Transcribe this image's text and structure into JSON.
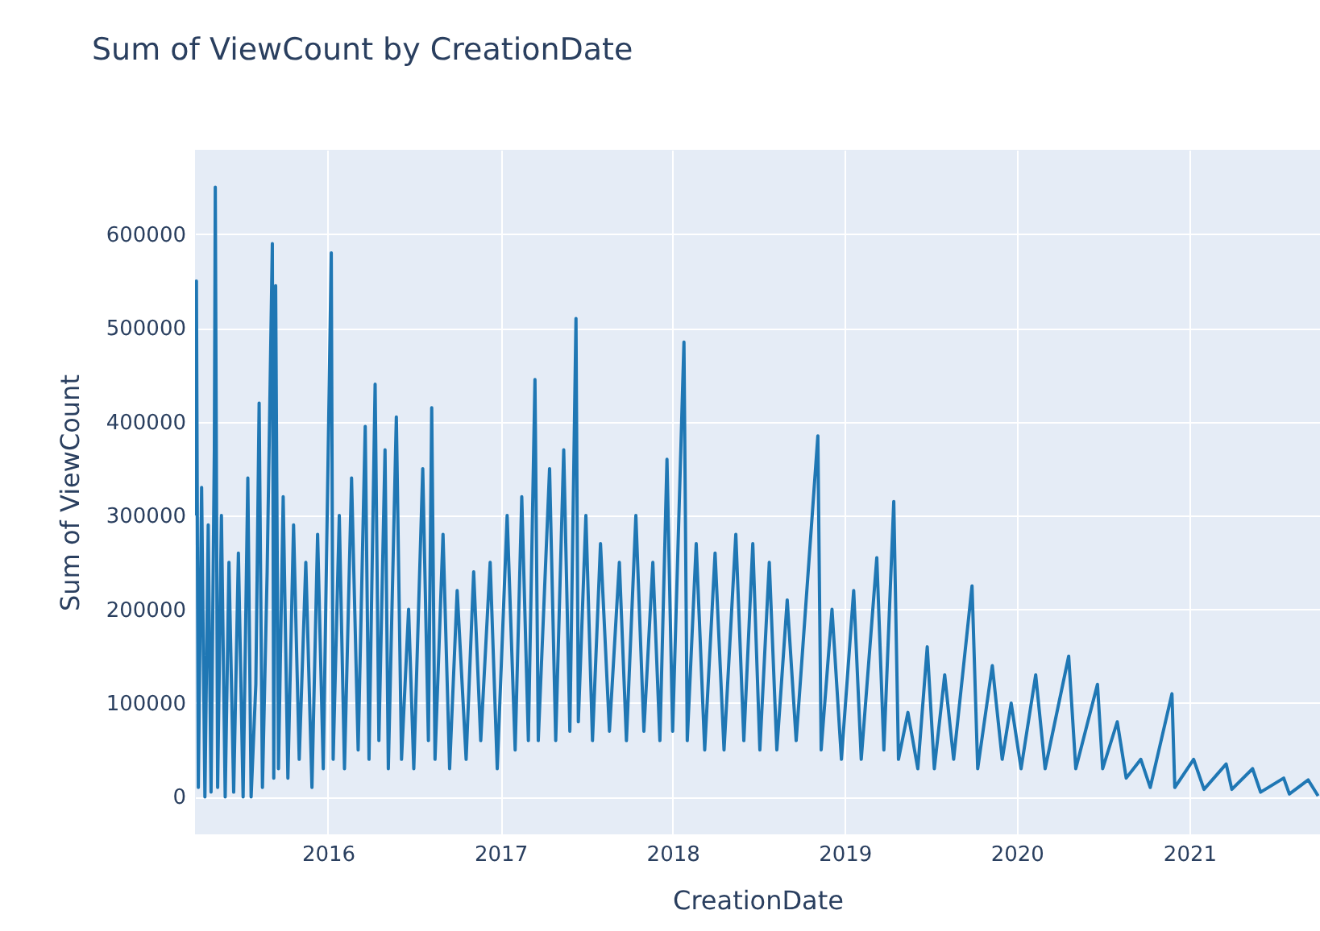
{
  "chart_data": {
    "type": "line",
    "title": "Sum of ViewCount by CreationDate",
    "xlabel": "CreationDate",
    "ylabel": "Sum of ViewCount",
    "xlim": [
      "2015-03-25",
      "2021-10-05"
    ],
    "xticks": [
      "2016",
      "2017",
      "2018",
      "2019",
      "2020",
      "2021"
    ],
    "ylim": [
      -40000,
      690000
    ],
    "yticks": [
      0,
      100000,
      200000,
      300000,
      400000,
      500000,
      600000
    ],
    "grid": true,
    "marker": "none",
    "line_style": "solid",
    "x": [
      "2015-03-25",
      "2015-03-28",
      "2015-04-01",
      "2015-04-08",
      "2015-04-15",
      "2015-04-22",
      "2015-04-28",
      "2015-05-05",
      "2015-05-07",
      "2015-05-12",
      "2015-05-20",
      "2015-05-28",
      "2015-06-05",
      "2015-06-15",
      "2015-06-25",
      "2015-07-05",
      "2015-07-15",
      "2015-07-22",
      "2015-08-01",
      "2015-08-08",
      "2015-08-15",
      "2015-08-25",
      "2015-09-05",
      "2015-09-08",
      "2015-09-12",
      "2015-09-18",
      "2015-09-28",
      "2015-10-08",
      "2015-10-20",
      "2015-11-01",
      "2015-11-15",
      "2015-11-28",
      "2015-12-10",
      "2015-12-22",
      "2016-01-08",
      "2016-01-12",
      "2016-01-25",
      "2016-02-05",
      "2016-02-20",
      "2016-03-05",
      "2016-03-20",
      "2016-03-28",
      "2016-04-10",
      "2016-04-18",
      "2016-05-01",
      "2016-05-08",
      "2016-05-25",
      "2016-06-05",
      "2016-06-20",
      "2016-07-01",
      "2016-07-20",
      "2016-08-01",
      "2016-08-08",
      "2016-08-15",
      "2016-09-01",
      "2016-09-15",
      "2016-10-01",
      "2016-10-20",
      "2016-11-05",
      "2016-11-20",
      "2016-12-10",
      "2016-12-25",
      "2017-01-15",
      "2017-02-01",
      "2017-02-15",
      "2017-03-01",
      "2017-03-15",
      "2017-03-22",
      "2017-04-15",
      "2017-04-28",
      "2017-05-15",
      "2017-05-28",
      "2017-06-10",
      "2017-06-15",
      "2017-07-01",
      "2017-07-15",
      "2017-08-01",
      "2017-08-20",
      "2017-09-10",
      "2017-09-25",
      "2017-10-15",
      "2017-11-01",
      "2017-11-20",
      "2017-12-05",
      "2017-12-20",
      "2018-01-01",
      "2018-01-25",
      "2018-02-01",
      "2018-02-20",
      "2018-03-10",
      "2018-04-01",
      "2018-04-20",
      "2018-05-15",
      "2018-06-01",
      "2018-06-20",
      "2018-07-05",
      "2018-07-25",
      "2018-08-10",
      "2018-09-01",
      "2018-09-20",
      "2018-11-05",
      "2018-11-12",
      "2018-12-05",
      "2018-12-25",
      "2019-01-20",
      "2019-02-05",
      "2019-03-10",
      "2019-03-25",
      "2019-04-15",
      "2019-04-25",
      "2019-05-15",
      "2019-06-05",
      "2019-06-25",
      "2019-07-10",
      "2019-08-01",
      "2019-08-20",
      "2019-09-28",
      "2019-10-10",
      "2019-11-10",
      "2019-12-01",
      "2019-12-20",
      "2020-01-10",
      "2020-02-10",
      "2020-03-01",
      "2020-04-20",
      "2020-05-05",
      "2020-06-20",
      "2020-07-01",
      "2020-08-01",
      "2020-08-20",
      "2020-09-20",
      "2020-10-10",
      "2020-11-25",
      "2020-12-01",
      "2021-01-10",
      "2021-02-01",
      "2021-03-20",
      "2021-04-01",
      "2021-05-15",
      "2021-06-01",
      "2021-07-20",
      "2021-08-01",
      "2021-09-10",
      "2021-10-01"
    ],
    "series": [
      {
        "color": "#1f77b4",
        "values": [
          300000,
          550000,
          10000,
          330000,
          0,
          290000,
          5000,
          370000,
          650000,
          10000,
          300000,
          0,
          250000,
          5000,
          260000,
          0,
          340000,
          0,
          120000,
          420000,
          10000,
          240000,
          590000,
          20000,
          545000,
          30000,
          320000,
          20000,
          290000,
          40000,
          250000,
          10000,
          280000,
          30000,
          580000,
          40000,
          300000,
          30000,
          340000,
          50000,
          395000,
          40000,
          440000,
          60000,
          370000,
          30000,
          405000,
          40000,
          200000,
          30000,
          350000,
          60000,
          415000,
          40000,
          280000,
          30000,
          220000,
          40000,
          240000,
          60000,
          250000,
          30000,
          300000,
          50000,
          320000,
          60000,
          445000,
          60000,
          350000,
          60000,
          370000,
          70000,
          510000,
          80000,
          300000,
          60000,
          270000,
          70000,
          250000,
          60000,
          300000,
          70000,
          250000,
          60000,
          360000,
          70000,
          485000,
          60000,
          270000,
          50000,
          260000,
          50000,
          280000,
          60000,
          270000,
          50000,
          250000,
          50000,
          210000,
          60000,
          385000,
          50000,
          200000,
          40000,
          220000,
          40000,
          255000,
          50000,
          315000,
          40000,
          90000,
          30000,
          160000,
          30000,
          130000,
          40000,
          225000,
          30000,
          140000,
          40000,
          100000,
          30000,
          130000,
          30000,
          150000,
          30000,
          120000,
          30000,
          80000,
          20000,
          40000,
          10000,
          110000,
          10000,
          40000,
          8000,
          35000,
          8000,
          30000,
          5000,
          20000,
          3000,
          18000,
          1000
        ]
      }
    ]
  }
}
